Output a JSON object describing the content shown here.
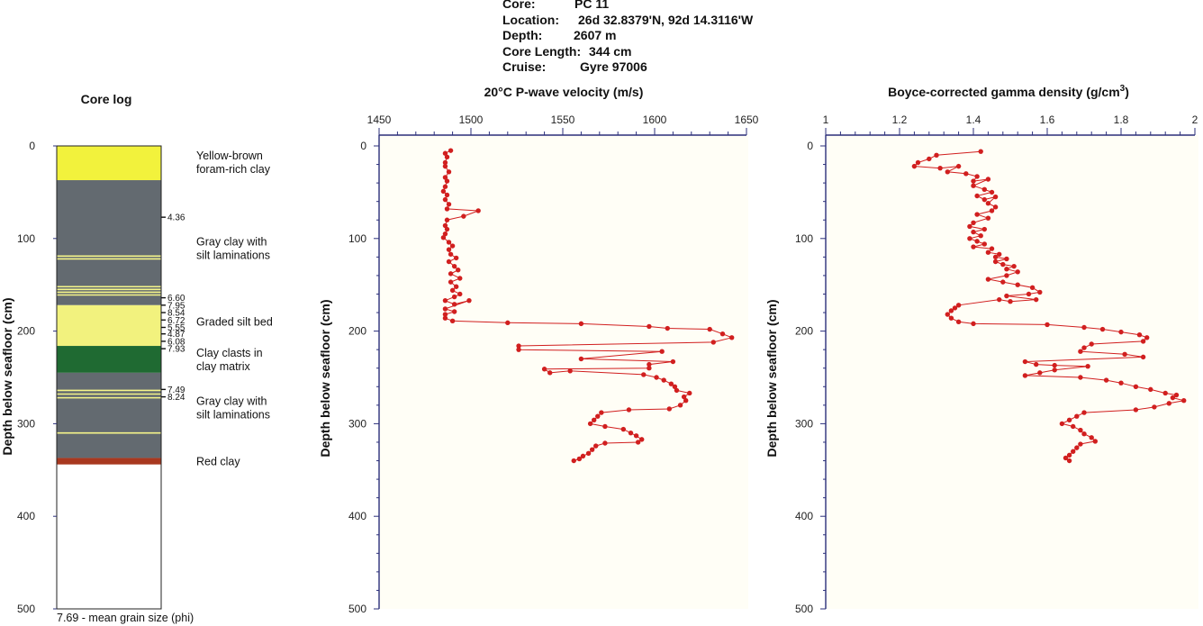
{
  "header": {
    "core_label": "Core:",
    "core_value": "PC 11",
    "location_label": "Location:",
    "location_value": "26d 32.8379'N, 92d 14.3116'W",
    "depth_label": "Depth:",
    "depth_value": "2607 m",
    "length_label": "Core Length:",
    "length_value": "344 cm",
    "cruise_label": "Cruise:",
    "cruise_value": "Gyre 97006"
  },
  "chart_data": [
    {
      "type": "table",
      "title": "Core log",
      "ylabel": "Depth below seafloor (cm)",
      "ylim": [
        0,
        500
      ],
      "yticks": [
        "0",
        "100",
        "200",
        "300",
        "400",
        "500"
      ],
      "footer": "7.69 - mean grain size (phi)",
      "colors": {
        "yellow": "#f2f23c",
        "gray": "#636a70",
        "lightyellow": "#f2f27e",
        "green": "#1f6a32",
        "red": "#a8381f"
      },
      "layers": [
        {
          "top": 0,
          "bottom": 37,
          "color": "yellow"
        },
        {
          "top": 37,
          "bottom": 172,
          "color": "gray"
        },
        {
          "top": 172,
          "bottom": 216,
          "color": "lightyellow"
        },
        {
          "top": 216,
          "bottom": 245,
          "color": "green"
        },
        {
          "top": 245,
          "bottom": 337,
          "color": "gray"
        },
        {
          "top": 337,
          "bottom": 344,
          "color": "red"
        }
      ],
      "laminations": [
        119,
        122,
        152,
        155,
        158,
        161,
        264,
        268,
        272,
        310
      ],
      "layer_labels": [
        {
          "text": [
            "Yellow-brown",
            "foram-rich clay"
          ],
          "depth": 18
        },
        {
          "text": [
            "Gray clay with",
            "silt laminations"
          ],
          "depth": 111
        },
        {
          "text": [
            "Graded silt bed"
          ],
          "depth": 190
        },
        {
          "text": [
            "Clay clasts in",
            "clay matrix"
          ],
          "depth": 231
        },
        {
          "text": [
            "Gray clay with",
            "silt laminations"
          ],
          "depth": 283
        },
        {
          "text": [
            "Red clay"
          ],
          "depth": 341
        }
      ],
      "grain_sizes": [
        {
          "value": "4.36",
          "depth": 77
        },
        {
          "value": "6.60",
          "depth": 164
        },
        {
          "value": "7.95",
          "depth": 172
        },
        {
          "value": "8.54",
          "depth": 180
        },
        {
          "value": "6.72",
          "depth": 188
        },
        {
          "value": "5.55",
          "depth": 196
        },
        {
          "value": "4.87",
          "depth": 203
        },
        {
          "value": "6.08",
          "depth": 211
        },
        {
          "value": "7.93",
          "depth": 219
        },
        {
          "value": "7.49",
          "depth": 263
        },
        {
          "value": "8.24",
          "depth": 271
        }
      ]
    },
    {
      "type": "line",
      "title": "20°C P-wave velocity (m/s)",
      "ylabel": "Depth below seafloor (cm)",
      "xlim": [
        1450,
        1650
      ],
      "ylim": [
        0,
        500
      ],
      "xticks": [
        "1450",
        "1500",
        "1550",
        "1600",
        "1650"
      ],
      "yticks": [
        "0",
        "100",
        "200",
        "300",
        "400",
        "500"
      ],
      "color": "#d11f1f",
      "points": [
        [
          1489,
          5
        ],
        [
          1486,
          8
        ],
        [
          1487,
          12
        ],
        [
          1486,
          18
        ],
        [
          1486,
          22
        ],
        [
          1488,
          28
        ],
        [
          1486,
          34
        ],
        [
          1487,
          38
        ],
        [
          1486,
          44
        ],
        [
          1485,
          49
        ],
        [
          1487,
          53
        ],
        [
          1486,
          58
        ],
        [
          1488,
          63
        ],
        [
          1487,
          68
        ],
        [
          1504,
          70
        ],
        [
          1496,
          76
        ],
        [
          1487,
          80
        ],
        [
          1486,
          86
        ],
        [
          1487,
          90
        ],
        [
          1486,
          95
        ],
        [
          1485,
          99
        ],
        [
          1488,
          104
        ],
        [
          1490,
          108
        ],
        [
          1488,
          112
        ],
        [
          1489,
          117
        ],
        [
          1492,
          121
        ],
        [
          1488,
          125
        ],
        [
          1491,
          130
        ],
        [
          1493,
          134
        ],
        [
          1489,
          138
        ],
        [
          1494,
          143
        ],
        [
          1489,
          147
        ],
        [
          1492,
          152
        ],
        [
          1490,
          156
        ],
        [
          1494,
          160
        ],
        [
          1491,
          163
        ],
        [
          1486,
          167
        ],
        [
          1491,
          171
        ],
        [
          1499,
          167
        ],
        [
          1486,
          176
        ],
        [
          1491,
          179
        ],
        [
          1486,
          182
        ],
        [
          1486,
          186
        ],
        [
          1490,
          189
        ],
        [
          1520,
          191
        ],
        [
          1560,
          192
        ],
        [
          1597,
          195
        ],
        [
          1607,
          197
        ],
        [
          1630,
          198
        ],
        [
          1637,
          203
        ],
        [
          1642,
          207
        ],
        [
          1632,
          212
        ],
        [
          1526,
          216
        ],
        [
          1526,
          220
        ],
        [
          1604,
          222
        ],
        [
          1560,
          230
        ],
        [
          1610,
          233
        ],
        [
          1597,
          236
        ],
        [
          1597,
          240
        ],
        [
          1540,
          241
        ],
        [
          1543,
          245
        ],
        [
          1554,
          243
        ],
        [
          1594,
          247
        ],
        [
          1601,
          250
        ],
        [
          1605,
          253
        ],
        [
          1609,
          257
        ],
        [
          1611,
          260
        ],
        [
          1612,
          264
        ],
        [
          1619,
          267
        ],
        [
          1616,
          271
        ],
        [
          1617,
          275
        ],
        [
          1614,
          280
        ],
        [
          1608,
          284
        ],
        [
          1586,
          285
        ],
        [
          1571,
          288
        ],
        [
          1569,
          292
        ],
        [
          1567,
          296
        ],
        [
          1565,
          300
        ],
        [
          1573,
          303
        ],
        [
          1583,
          306
        ],
        [
          1587,
          310
        ],
        [
          1590,
          313
        ],
        [
          1593,
          317
        ],
        [
          1591,
          320
        ],
        [
          1573,
          321
        ],
        [
          1568,
          324
        ],
        [
          1566,
          328
        ],
        [
          1564,
          332
        ],
        [
          1561,
          335
        ],
        [
          1559,
          338
        ],
        [
          1556,
          340
        ]
      ]
    },
    {
      "type": "line",
      "title": "Boyce-corrected gamma density (g/cm³)",
      "ylabel": "Depth below seafloor (cm)",
      "xlim": [
        1,
        2
      ],
      "ylim": [
        0,
        500
      ],
      "xticks": [
        "1",
        "1.2",
        "1.4",
        "1.6",
        "1.8",
        "2"
      ],
      "yticks": [
        "0",
        "100",
        "200",
        "300",
        "400",
        "500"
      ],
      "color": "#d11f1f",
      "points": [
        [
          1.42,
          6
        ],
        [
          1.3,
          10
        ],
        [
          1.28,
          14
        ],
        [
          1.25,
          18
        ],
        [
          1.24,
          22
        ],
        [
          1.31,
          24
        ],
        [
          1.36,
          22
        ],
        [
          1.33,
          28
        ],
        [
          1.38,
          30
        ],
        [
          1.41,
          33
        ],
        [
          1.4,
          38
        ],
        [
          1.44,
          36
        ],
        [
          1.4,
          43
        ],
        [
          1.43,
          47
        ],
        [
          1.45,
          50
        ],
        [
          1.41,
          54
        ],
        [
          1.43,
          58
        ],
        [
          1.46,
          55
        ],
        [
          1.44,
          62
        ],
        [
          1.46,
          66
        ],
        [
          1.45,
          70
        ],
        [
          1.41,
          74
        ],
        [
          1.44,
          78
        ],
        [
          1.4,
          83
        ],
        [
          1.39,
          87
        ],
        [
          1.43,
          90
        ],
        [
          1.4,
          93
        ],
        [
          1.42,
          97
        ],
        [
          1.39,
          100
        ],
        [
          1.41,
          103
        ],
        [
          1.43,
          106
        ],
        [
          1.4,
          109
        ],
        [
          1.45,
          111
        ],
        [
          1.44,
          115
        ],
        [
          1.47,
          117
        ],
        [
          1.46,
          120
        ],
        [
          1.49,
          122
        ],
        [
          1.46,
          125
        ],
        [
          1.48,
          128
        ],
        [
          1.51,
          130
        ],
        [
          1.49,
          133
        ],
        [
          1.52,
          136
        ],
        [
          1.49,
          140
        ],
        [
          1.44,
          144
        ],
        [
          1.48,
          147
        ],
        [
          1.52,
          150
        ],
        [
          1.56,
          153
        ],
        [
          1.58,
          158
        ],
        [
          1.55,
          160
        ],
        [
          1.49,
          162
        ],
        [
          1.57,
          166
        ],
        [
          1.5,
          168
        ],
        [
          1.47,
          166
        ],
        [
          1.36,
          172
        ],
        [
          1.35,
          175
        ],
        [
          1.34,
          178
        ],
        [
          1.33,
          182
        ],
        [
          1.34,
          186
        ],
        [
          1.36,
          190
        ],
        [
          1.4,
          192
        ],
        [
          1.6,
          193
        ],
        [
          1.7,
          196
        ],
        [
          1.75,
          198
        ],
        [
          1.8,
          201
        ],
        [
          1.85,
          204
        ],
        [
          1.87,
          207
        ],
        [
          1.86,
          211
        ],
        [
          1.72,
          214
        ],
        [
          1.7,
          218
        ],
        [
          1.69,
          222
        ],
        [
          1.81,
          225
        ],
        [
          1.86,
          228
        ],
        [
          1.54,
          233
        ],
        [
          1.57,
          236
        ],
        [
          1.62,
          237
        ],
        [
          1.71,
          238
        ],
        [
          1.62,
          242
        ],
        [
          1.58,
          245
        ],
        [
          1.54,
          248
        ],
        [
          1.69,
          250
        ],
        [
          1.76,
          253
        ],
        [
          1.8,
          256
        ],
        [
          1.84,
          260
        ],
        [
          1.88,
          263
        ],
        [
          1.92,
          267
        ],
        [
          1.95,
          269
        ],
        [
          1.94,
          272
        ],
        [
          1.97,
          275
        ],
        [
          1.93,
          278
        ],
        [
          1.89,
          282
        ],
        [
          1.84,
          285
        ],
        [
          1.7,
          288
        ],
        [
          1.68,
          292
        ],
        [
          1.66,
          296
        ],
        [
          1.64,
          300
        ],
        [
          1.67,
          303
        ],
        [
          1.69,
          307
        ],
        [
          1.7,
          311
        ],
        [
          1.72,
          315
        ],
        [
          1.73,
          319
        ],
        [
          1.69,
          322
        ],
        [
          1.68,
          326
        ],
        [
          1.67,
          330
        ],
        [
          1.66,
          334
        ],
        [
          1.65,
          337
        ],
        [
          1.66,
          340
        ]
      ]
    }
  ]
}
